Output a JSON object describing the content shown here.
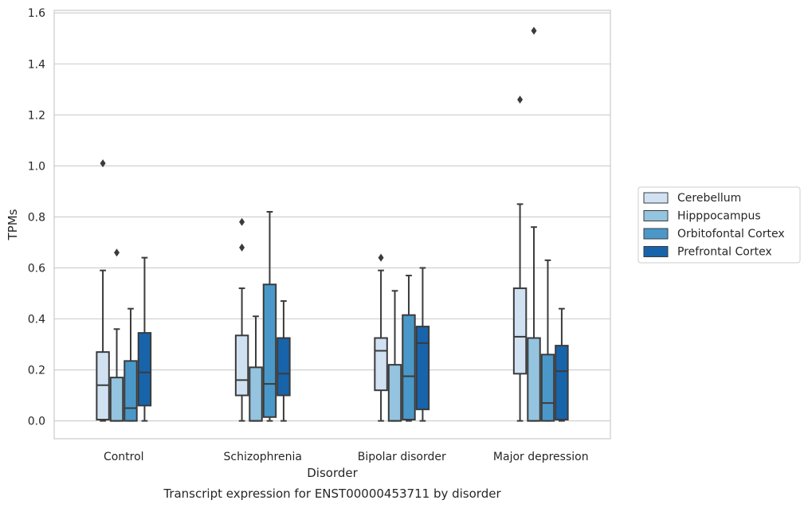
{
  "chart_data": {
    "type": "box",
    "xlabel": "Disorder",
    "ylabel": "TPMs",
    "caption": "Transcript expression for ENST00000453711 by disorder",
    "ylim": [
      -0.07,
      1.61
    ],
    "yticks": [
      "0.0",
      "0.2",
      "0.4",
      "0.6",
      "0.8",
      "1.0",
      "1.2",
      "1.4",
      "1.6"
    ],
    "grid": true,
    "legend_position": "right",
    "categories": [
      "Control",
      "Schizophrenia",
      "Bipolar disorder",
      "Major depression"
    ],
    "series": [
      {
        "name": "Cerebellum",
        "color": "#d0e1f2",
        "boxes": [
          {
            "whislo": 0.0,
            "q1": 0.005,
            "med": 0.14,
            "q3": 0.27,
            "whishi": 0.59,
            "fliers": [
              1.01
            ]
          },
          {
            "whislo": 0.0,
            "q1": 0.1,
            "med": 0.16,
            "q3": 0.335,
            "whishi": 0.52,
            "fliers": [
              0.68,
              0.78
            ]
          },
          {
            "whislo": 0.0,
            "q1": 0.12,
            "med": 0.275,
            "q3": 0.325,
            "whishi": 0.59,
            "fliers": [
              0.64
            ]
          },
          {
            "whislo": 0.0,
            "q1": 0.185,
            "med": 0.33,
            "q3": 0.52,
            "whishi": 0.85,
            "fliers": [
              1.26
            ]
          }
        ]
      },
      {
        "name": "Hipppocampus",
        "color": "#94c4df",
        "boxes": [
          {
            "whislo": 0.0,
            "q1": 0.0,
            "med": 0.0,
            "q3": 0.17,
            "whishi": 0.36,
            "fliers": [
              0.66
            ]
          },
          {
            "whislo": 0.0,
            "q1": 0.0,
            "med": 0.0,
            "q3": 0.21,
            "whishi": 0.41,
            "fliers": []
          },
          {
            "whislo": 0.0,
            "q1": 0.0,
            "med": 0.0,
            "q3": 0.22,
            "whishi": 0.51,
            "fliers": []
          },
          {
            "whislo": 0.0,
            "q1": 0.0,
            "med": 0.0,
            "q3": 0.325,
            "whishi": 0.76,
            "fliers": [
              1.53
            ]
          }
        ]
      },
      {
        "name": "Orbitofontal Cortex",
        "color": "#4a98c9",
        "boxes": [
          {
            "whislo": 0.0,
            "q1": 0.0,
            "med": 0.05,
            "q3": 0.235,
            "whishi": 0.44,
            "fliers": []
          },
          {
            "whislo": 0.0,
            "q1": 0.015,
            "med": 0.145,
            "q3": 0.535,
            "whishi": 0.82,
            "fliers": []
          },
          {
            "whislo": 0.0,
            "q1": 0.005,
            "med": 0.175,
            "q3": 0.415,
            "whishi": 0.57,
            "fliers": []
          },
          {
            "whislo": 0.0,
            "q1": 0.0,
            "med": 0.07,
            "q3": 0.26,
            "whishi": 0.63,
            "fliers": []
          }
        ]
      },
      {
        "name": "Prefrontal Cortex",
        "color": "#1764ab",
        "boxes": [
          {
            "whislo": 0.0,
            "q1": 0.06,
            "med": 0.19,
            "q3": 0.345,
            "whishi": 0.64,
            "fliers": []
          },
          {
            "whislo": 0.0,
            "q1": 0.1,
            "med": 0.185,
            "q3": 0.325,
            "whishi": 0.47,
            "fliers": []
          },
          {
            "whislo": 0.0,
            "q1": 0.045,
            "med": 0.305,
            "q3": 0.37,
            "whishi": 0.6,
            "fliers": []
          },
          {
            "whislo": 0.0,
            "q1": 0.005,
            "med": 0.195,
            "q3": 0.295,
            "whishi": 0.44,
            "fliers": []
          }
        ]
      }
    ]
  }
}
